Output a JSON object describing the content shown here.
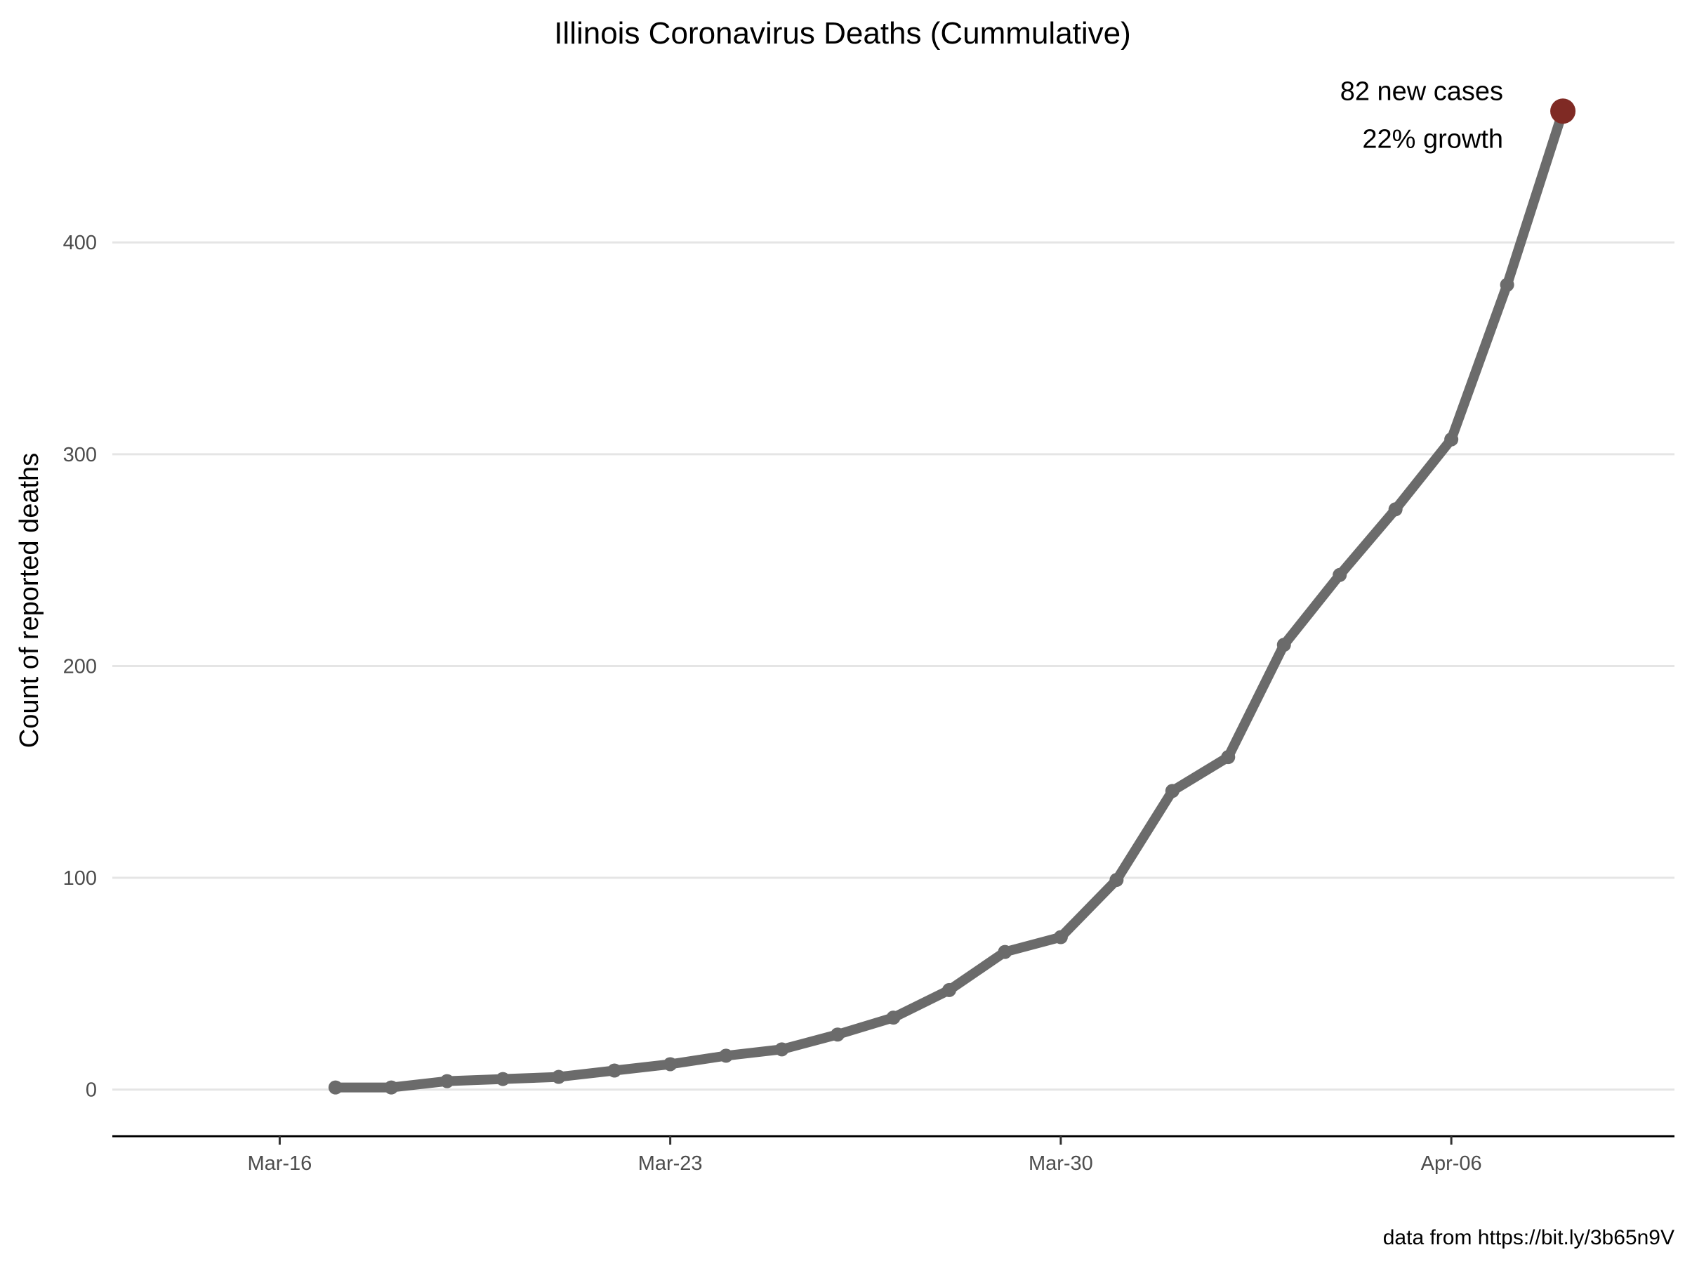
{
  "chart_data": {
    "type": "line",
    "title": "Illinois Coronavirus Deaths (Cummulative)",
    "xlabel": "",
    "ylabel": "Count of reported deaths",
    "caption": "data from https://bit.ly/3b65n9V",
    "x_tick_labels": [
      "Mar-16",
      "Mar-23",
      "Mar-30",
      "Apr-06"
    ],
    "x_tick_dates": [
      "2020-03-16",
      "2020-03-23",
      "2020-03-30",
      "2020-04-06"
    ],
    "y_ticks": [
      0,
      100,
      200,
      300,
      400
    ],
    "xlim": [
      "2020-03-13",
      "2020-04-10"
    ],
    "ylim": [
      -22,
      478
    ],
    "grid": "horizontal major",
    "line_color": "#6b6b6b",
    "highlight_color": "#7f2a24",
    "series": [
      {
        "x": [
          "2020-03-17",
          "2020-03-18",
          "2020-03-19",
          "2020-03-20",
          "2020-03-21",
          "2020-03-22",
          "2020-03-23",
          "2020-03-24",
          "2020-03-25",
          "2020-03-26",
          "2020-03-27",
          "2020-03-28",
          "2020-03-29",
          "2020-03-30",
          "2020-03-31",
          "2020-04-01",
          "2020-04-02",
          "2020-04-03",
          "2020-04-04",
          "2020-04-05",
          "2020-04-06",
          "2020-04-07",
          "2020-04-08"
        ],
        "values": [
          1,
          1,
          4,
          5,
          6,
          9,
          12,
          16,
          19,
          26,
          34,
          47,
          65,
          72,
          99,
          141,
          157,
          210,
          243,
          274,
          307,
          380,
          462
        ]
      }
    ],
    "annotation": {
      "lines": [
        "82 new cases",
        "22% growth"
      ],
      "date": "2020-04-08",
      "value": 462
    }
  }
}
